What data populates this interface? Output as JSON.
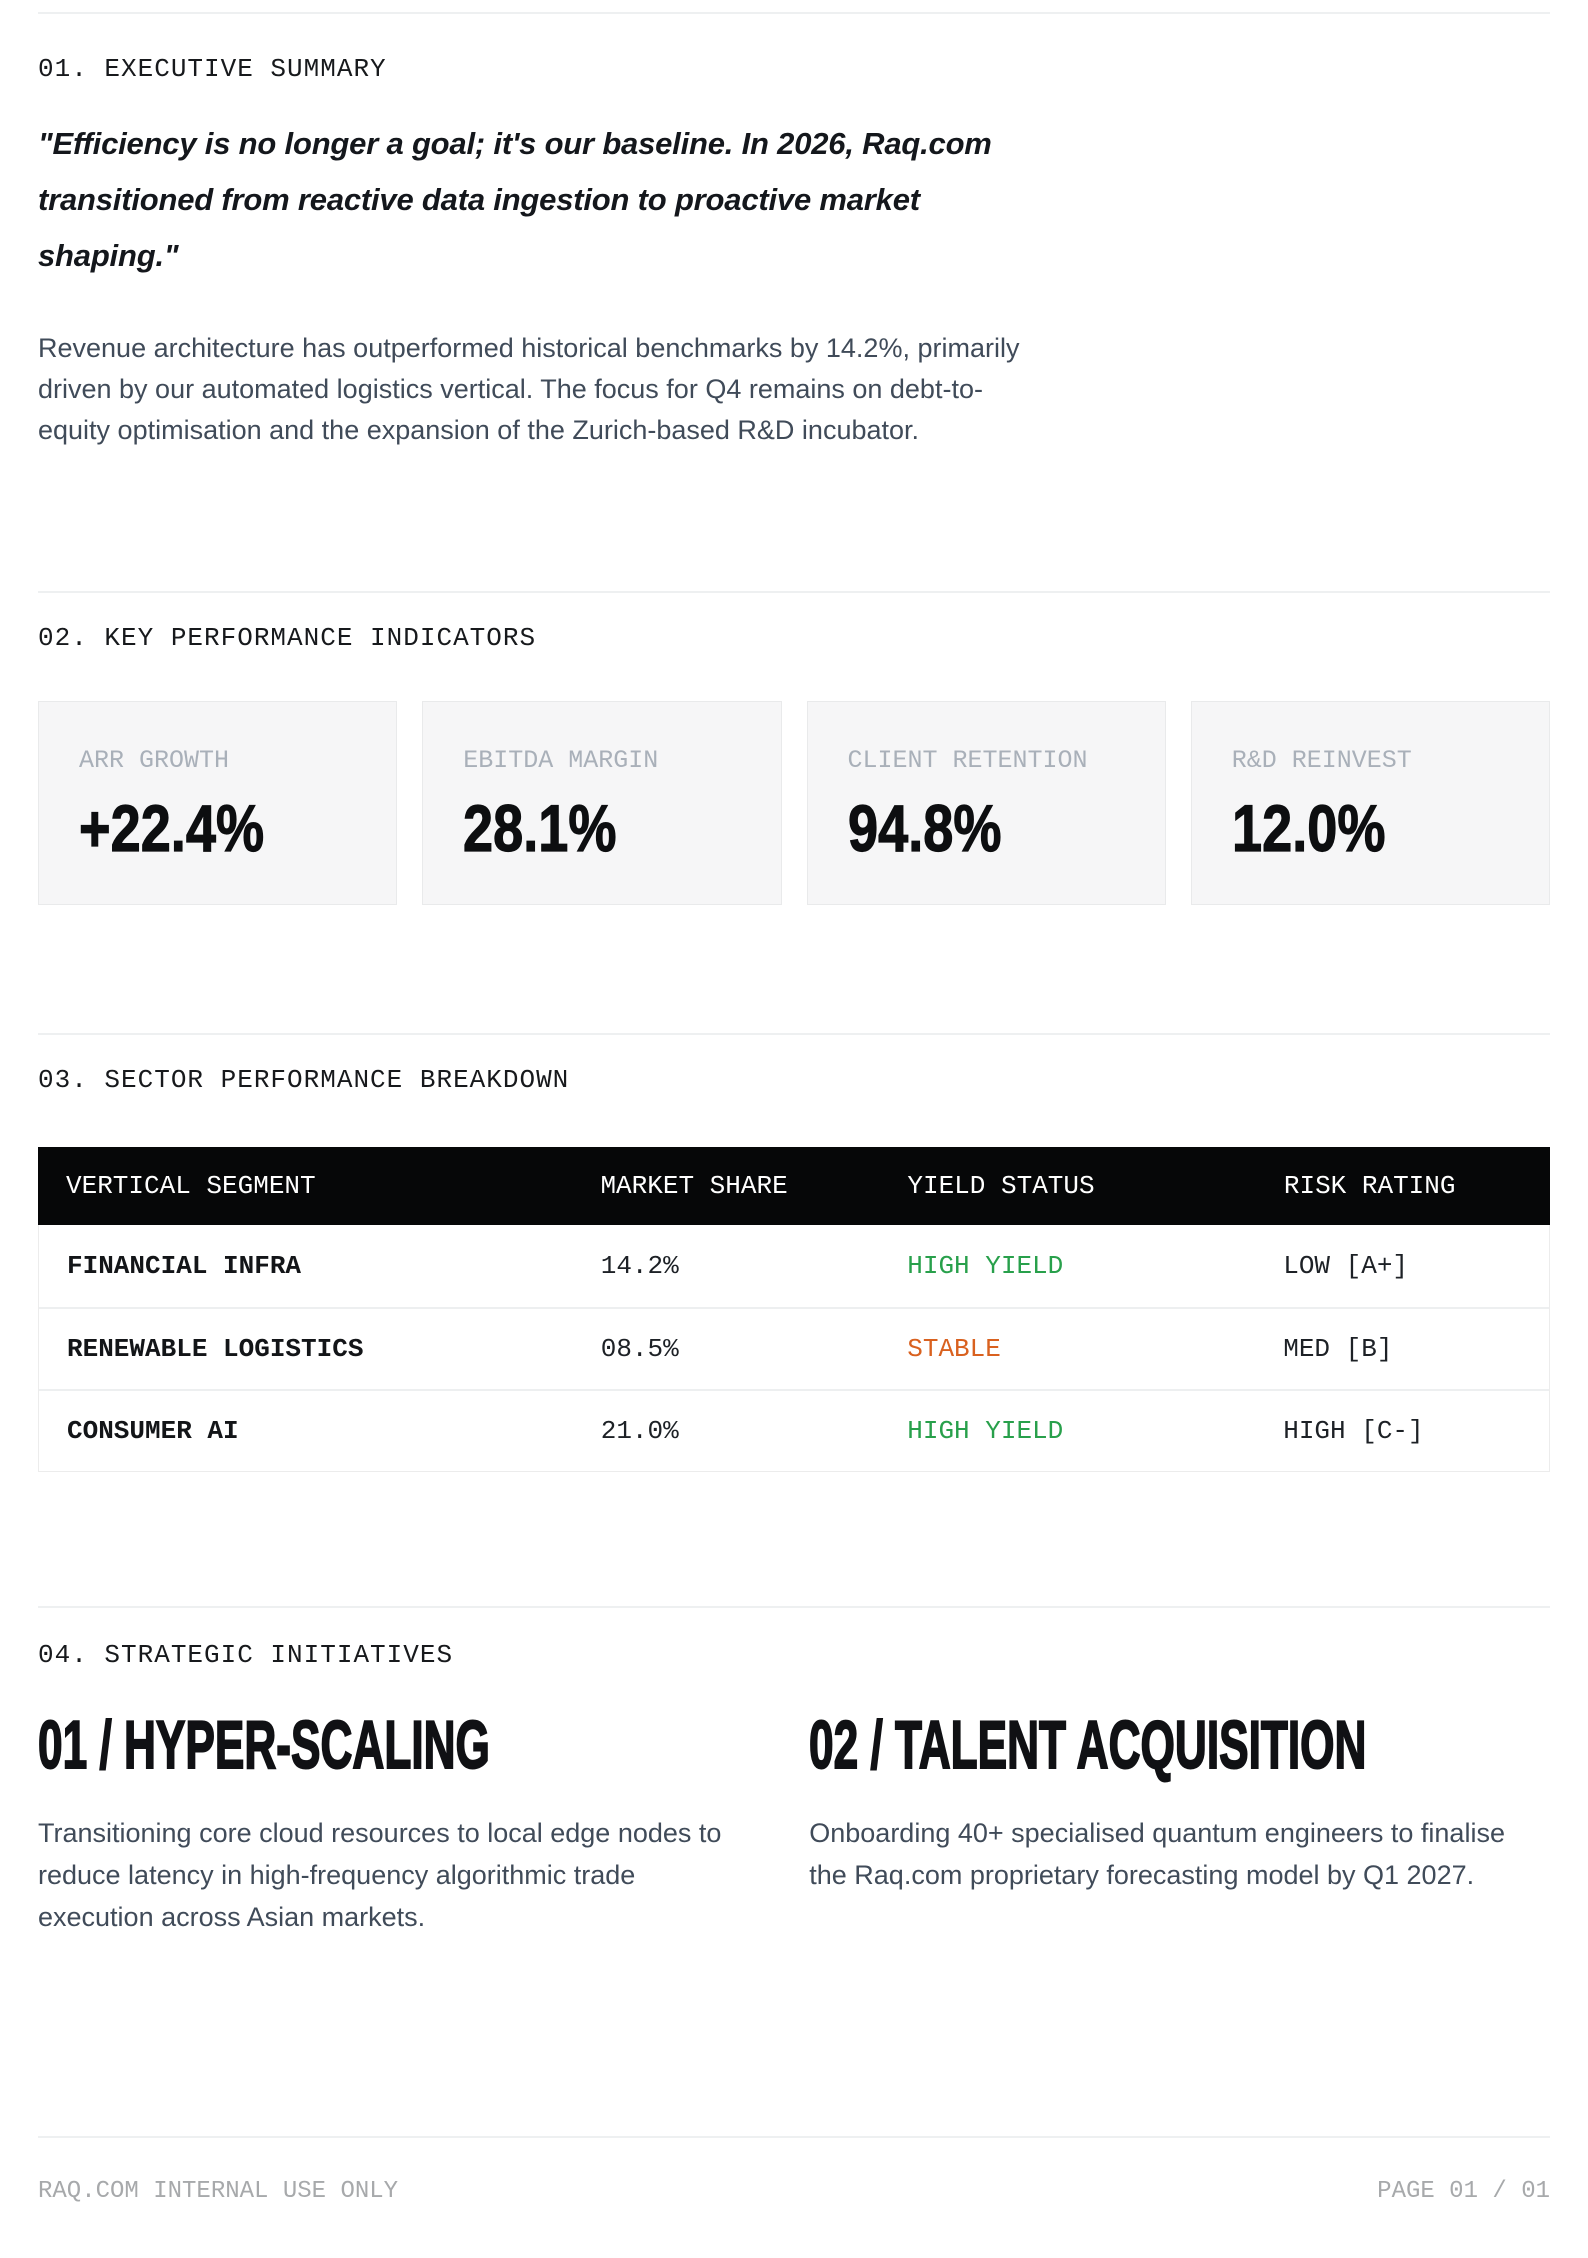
{
  "exec": {
    "heading": "01. EXECUTIVE SUMMARY",
    "quote": "\"Efficiency is no longer a goal; it's our baseline. In 2026, Raq.com transitioned from reactive data ingestion to proactive market shaping.\"",
    "body": "Revenue architecture has outperformed historical benchmarks by 14.2%, primarily driven by our automated logistics vertical. The focus for Q4 remains on debt-to-equity optimisation and the expansion of the Zurich-based R&D incubator."
  },
  "kpi": {
    "heading": "02. KEY PERFORMANCE INDICATORS",
    "cards": [
      {
        "label": "ARR GROWTH",
        "value": "+22.4%"
      },
      {
        "label": "EBITDA MARGIN",
        "value": "28.1%"
      },
      {
        "label": "CLIENT RETENTION",
        "value": "94.8%"
      },
      {
        "label": "R&D REINVEST",
        "value": "12.0%"
      }
    ]
  },
  "sector": {
    "heading": "03. SECTOR PERFORMANCE BREAKDOWN",
    "columns": [
      "VERTICAL SEGMENT",
      "MARKET SHARE",
      "YIELD STATUS",
      "RISK RATING"
    ],
    "rows": [
      {
        "segment": "FINANCIAL INFRA",
        "share": "14.2%",
        "yield": "HIGH YIELD",
        "yield_color": "#28a04b",
        "risk": "LOW [A+]"
      },
      {
        "segment": "RENEWABLE LOGISTICS",
        "share": "08.5%",
        "yield": "STABLE",
        "yield_color": "#d9611f",
        "risk": "MED [B]"
      },
      {
        "segment": "CONSUMER AI",
        "share": "21.0%",
        "yield": "HIGH YIELD",
        "yield_color": "#28a04b",
        "risk": "HIGH [C-]"
      }
    ]
  },
  "initiatives": {
    "heading": "04. STRATEGIC INITIATIVES",
    "items": [
      {
        "title": "01 / HYPER-SCALING",
        "body": "Transitioning core cloud resources to local edge nodes to reduce latency in high-frequency algorithmic trade execution across Asian markets."
      },
      {
        "title": "02 / TALENT ACQUISITION",
        "body": "Onboarding 40+ specialised quantum engineers to finalise the Raq.com proprietary forecasting model by Q1 2027."
      }
    ]
  },
  "footer": {
    "left": "RAQ.COM INTERNAL USE ONLY",
    "right": "PAGE 01 / 01"
  },
  "colors": {
    "yield_high": "#28a04b",
    "yield_stable": "#d9611f",
    "table_header_bg": "#060708",
    "text_primary": "#14171c",
    "text_body": "#404b59",
    "kpi_label_gray": "#a9b0b9",
    "footer_gray": "#a7a9ab",
    "divider": "#eef0f1",
    "card_bg": "#f6f6f7"
  }
}
